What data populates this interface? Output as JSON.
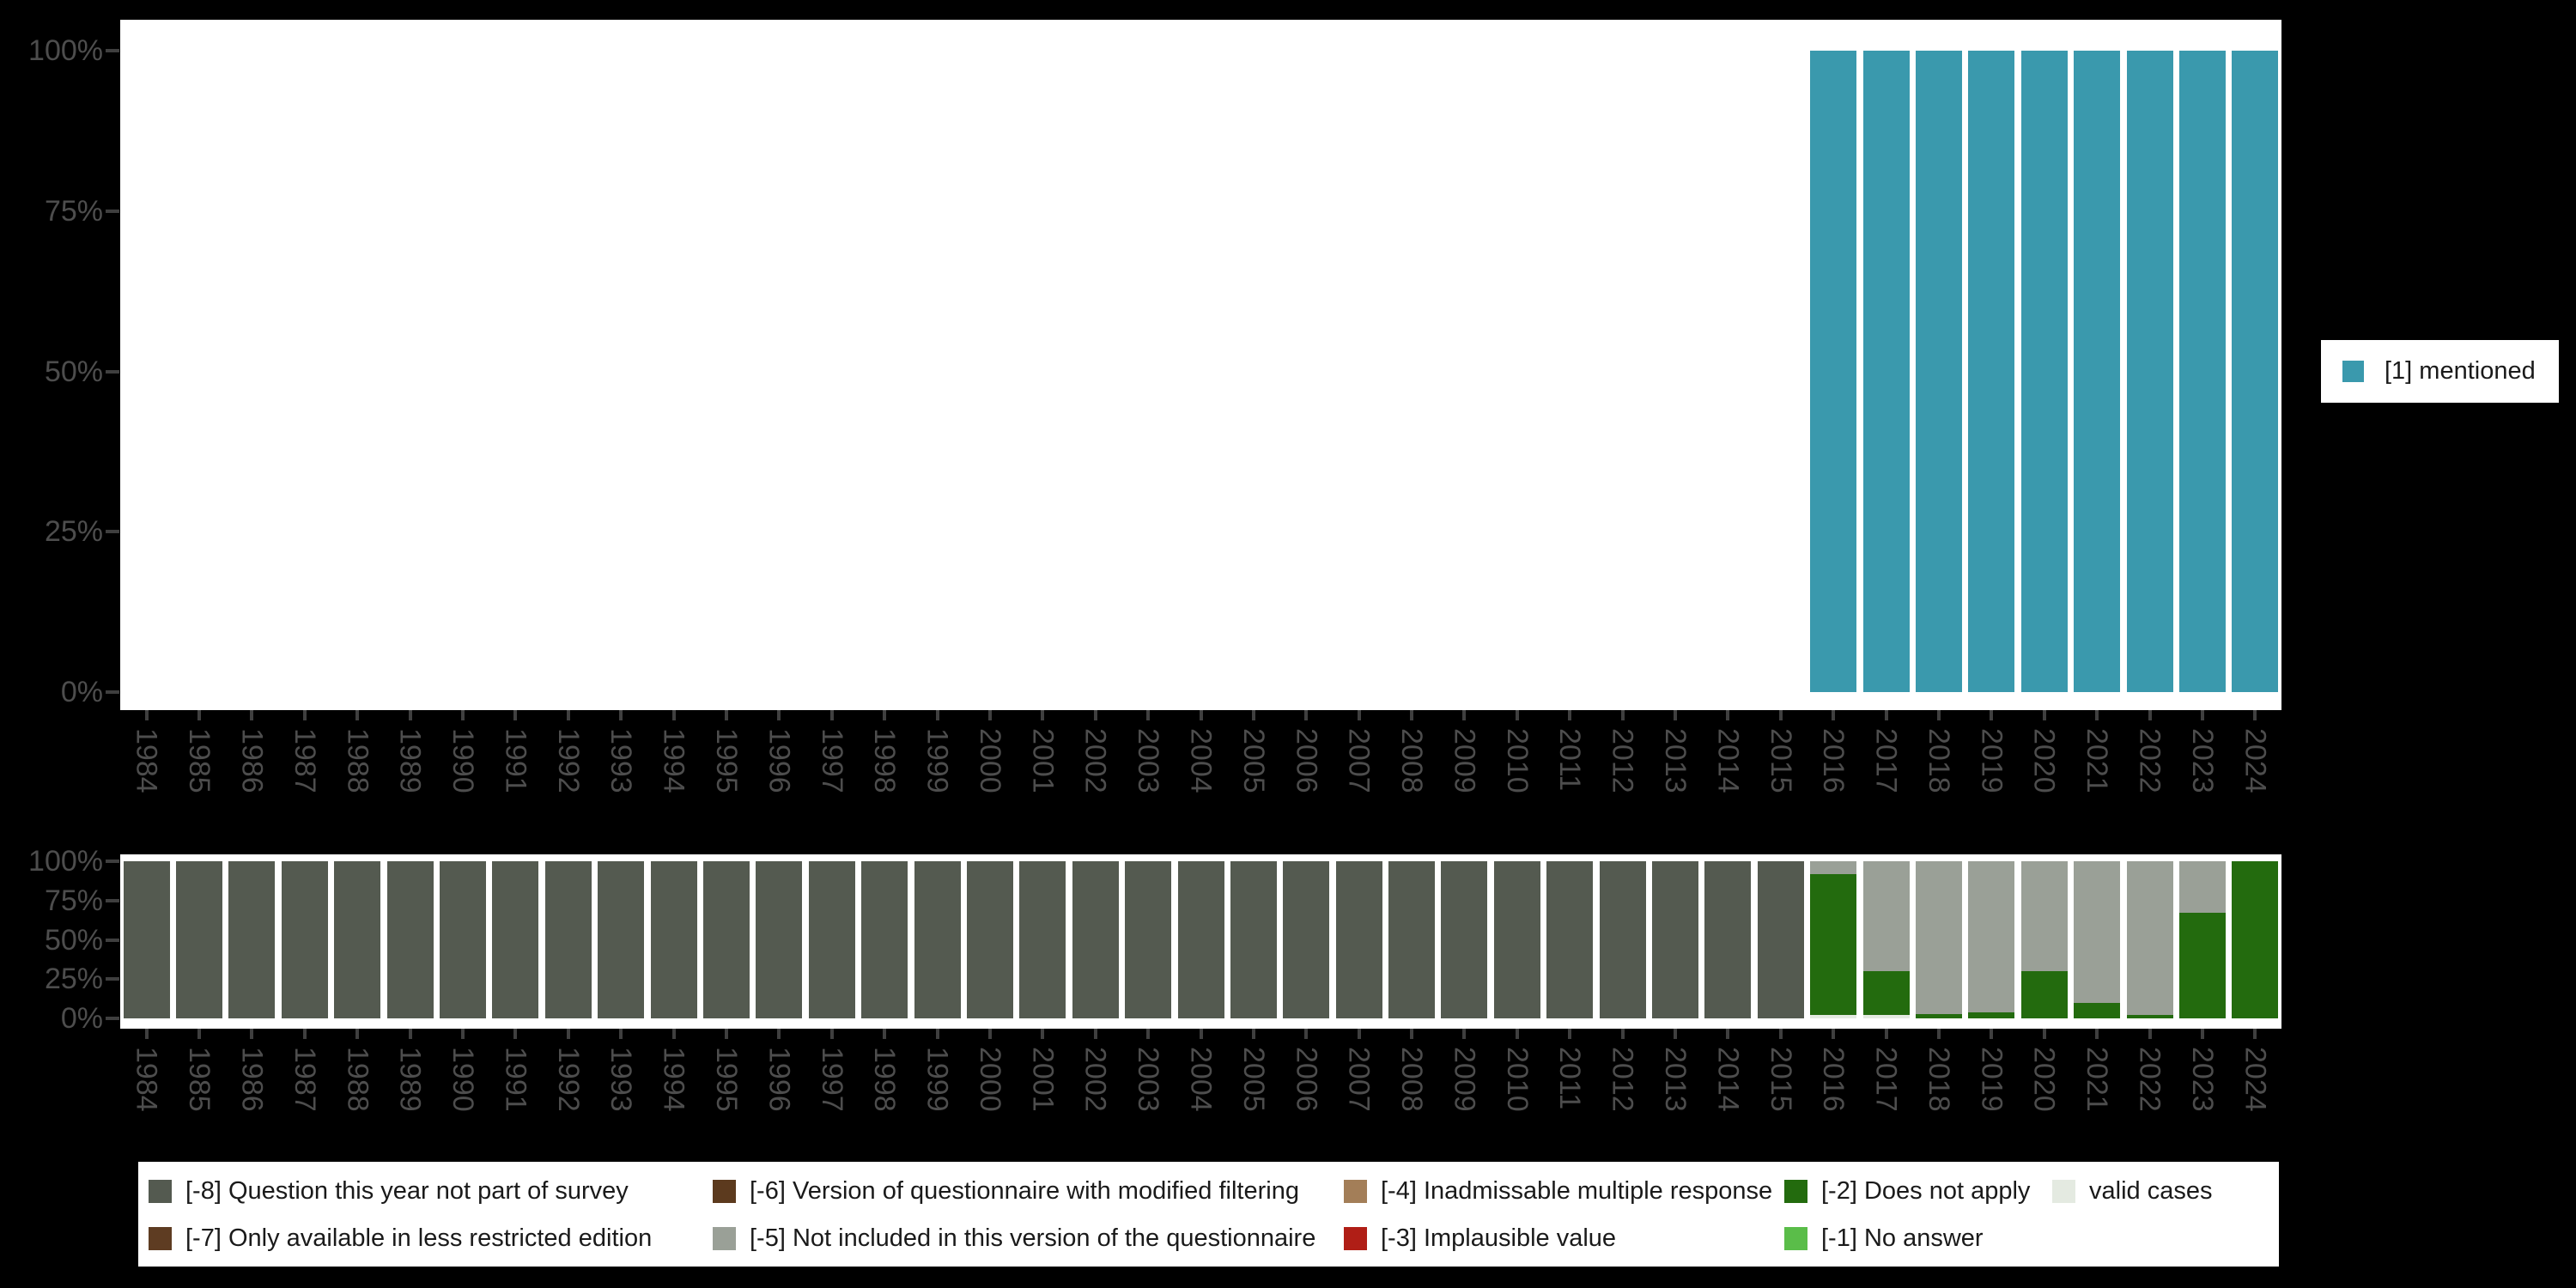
{
  "background": "#000000",
  "palette": {
    "mentioned": "#3A99AD",
    "-8": "#545A50",
    "-7": "#5E3C22",
    "-6": "#5C3A1E",
    "-5": "#9AA097",
    "-4": "#A37E58",
    "-3": "#B01E16",
    "-2": "#236B0E",
    "-1": "#5ABD49",
    "valid": "#E4EAE1",
    "panel": "#FFFFFF",
    "axis_text": "#4D4D4D",
    "tick_mark": "#3F3F3F",
    "legend_text": "#1A1A1A"
  },
  "top_legend": {
    "items": [
      {
        "key": "mentioned",
        "label": "[1] mentioned"
      }
    ]
  },
  "bottom_legend": {
    "items": [
      {
        "key": "-8",
        "label": "[-8] Question this year not part of survey",
        "col": 0,
        "row": 0
      },
      {
        "key": "-7",
        "label": "[-7] Only available in less restricted edition",
        "col": 0,
        "row": 1
      },
      {
        "key": "-6",
        "label": "[-6] Version of questionnaire with modified filtering",
        "col": 1,
        "row": 0
      },
      {
        "key": "-5",
        "label": "[-5] Not included in this version of the questionnaire",
        "col": 1,
        "row": 1
      },
      {
        "key": "-4",
        "label": "[-4] Inadmissable multiple response",
        "col": 2,
        "row": 0
      },
      {
        "key": "-3",
        "label": "[-3] Implausible value",
        "col": 2,
        "row": 1
      },
      {
        "key": "-2",
        "label": "[-2] Does not apply",
        "col": 3,
        "row": 0
      },
      {
        "key": "-1",
        "label": "[-1] No answer",
        "col": 3,
        "row": 1
      },
      {
        "key": "valid",
        "label": "valid cases",
        "col": 4,
        "row": 0
      }
    ]
  },
  "chart_data": [
    {
      "type": "bar",
      "role": "percent-of-valid-answers-by-year",
      "stacked": true,
      "grid": false,
      "legend_position": "right",
      "ylim": [
        0,
        100
      ],
      "ytick_labels": [
        "100%",
        "75%",
        "50%",
        "25%",
        "0%"
      ],
      "categories": [
        "1984",
        "1985",
        "1986",
        "1987",
        "1988",
        "1989",
        "1990",
        "1991",
        "1992",
        "1993",
        "1994",
        "1995",
        "1996",
        "1997",
        "1998",
        "1999",
        "2000",
        "2001",
        "2002",
        "2003",
        "2004",
        "2005",
        "2006",
        "2007",
        "2008",
        "2009",
        "2010",
        "2011",
        "2012",
        "2013",
        "2014",
        "2015",
        "2016",
        "2017",
        "2018",
        "2019",
        "2020",
        "2021",
        "2022",
        "2023",
        "2024"
      ],
      "series": [
        {
          "name": "[1] mentioned",
          "key": "mentioned",
          "values_by_year": {
            "2016": 100,
            "2017": 100,
            "2018": 100,
            "2019": 100,
            "2020": 100,
            "2021": 100,
            "2022": 100,
            "2023": 100,
            "2024": 100
          }
        }
      ]
    },
    {
      "type": "bar",
      "role": "missing-values-and-valid-cases-percent-by-year",
      "stacked": true,
      "grid": false,
      "legend_position": "bottom",
      "ylim": [
        0,
        100
      ],
      "ytick_labels": [
        "100%",
        "75%",
        "50%",
        "25%",
        "0%"
      ],
      "categories": [
        "1984",
        "1985",
        "1986",
        "1987",
        "1988",
        "1989",
        "1990",
        "1991",
        "1992",
        "1993",
        "1994",
        "1995",
        "1996",
        "1997",
        "1998",
        "1999",
        "2000",
        "2001",
        "2002",
        "2003",
        "2004",
        "2005",
        "2006",
        "2007",
        "2008",
        "2009",
        "2010",
        "2011",
        "2012",
        "2013",
        "2014",
        "2015",
        "2016",
        "2017",
        "2018",
        "2019",
        "2020",
        "2021",
        "2022",
        "2023",
        "2024"
      ],
      "stacks_bottom_to_top": {
        "1984": [
          [
            "-8",
            100
          ]
        ],
        "1985": [
          [
            "-8",
            100
          ]
        ],
        "1986": [
          [
            "-8",
            100
          ]
        ],
        "1987": [
          [
            "-8",
            100
          ]
        ],
        "1988": [
          [
            "-8",
            100
          ]
        ],
        "1989": [
          [
            "-8",
            100
          ]
        ],
        "1990": [
          [
            "-8",
            100
          ]
        ],
        "1991": [
          [
            "-8",
            100
          ]
        ],
        "1992": [
          [
            "-8",
            100
          ]
        ],
        "1993": [
          [
            "-8",
            100
          ]
        ],
        "1994": [
          [
            "-8",
            100
          ]
        ],
        "1995": [
          [
            "-8",
            100
          ]
        ],
        "1996": [
          [
            "-8",
            100
          ]
        ],
        "1997": [
          [
            "-8",
            100
          ]
        ],
        "1998": [
          [
            "-8",
            100
          ]
        ],
        "1999": [
          [
            "-8",
            100
          ]
        ],
        "2000": [
          [
            "-8",
            100
          ]
        ],
        "2001": [
          [
            "-8",
            100
          ]
        ],
        "2002": [
          [
            "-8",
            100
          ]
        ],
        "2003": [
          [
            "-8",
            100
          ]
        ],
        "2004": [
          [
            "-8",
            100
          ]
        ],
        "2005": [
          [
            "-8",
            100
          ]
        ],
        "2006": [
          [
            "-8",
            100
          ]
        ],
        "2007": [
          [
            "-8",
            100
          ]
        ],
        "2008": [
          [
            "-8",
            100
          ]
        ],
        "2009": [
          [
            "-8",
            100
          ]
        ],
        "2010": [
          [
            "-8",
            100
          ]
        ],
        "2011": [
          [
            "-8",
            100
          ]
        ],
        "2012": [
          [
            "-8",
            100
          ]
        ],
        "2013": [
          [
            "-8",
            100
          ]
        ],
        "2014": [
          [
            "-8",
            100
          ]
        ],
        "2015": [
          [
            "-8",
            100
          ]
        ],
        "2016": [
          [
            "valid",
            2
          ],
          [
            "-2",
            90
          ],
          [
            "-5",
            8
          ]
        ],
        "2017": [
          [
            "valid",
            2
          ],
          [
            "-2",
            28
          ],
          [
            "-5",
            70
          ]
        ],
        "2018": [
          [
            "-2",
            3
          ],
          [
            "-5",
            97
          ]
        ],
        "2019": [
          [
            "-2",
            4
          ],
          [
            "-5",
            96
          ]
        ],
        "2020": [
          [
            "-2",
            30
          ],
          [
            "-5",
            70
          ]
        ],
        "2021": [
          [
            "-2",
            10
          ],
          [
            "-5",
            90
          ]
        ],
        "2022": [
          [
            "-2",
            2
          ],
          [
            "-5",
            98
          ]
        ],
        "2023": [
          [
            "-2",
            67
          ],
          [
            "-5",
            33
          ]
        ],
        "2024": [
          [
            "-2",
            100
          ]
        ]
      }
    }
  ]
}
